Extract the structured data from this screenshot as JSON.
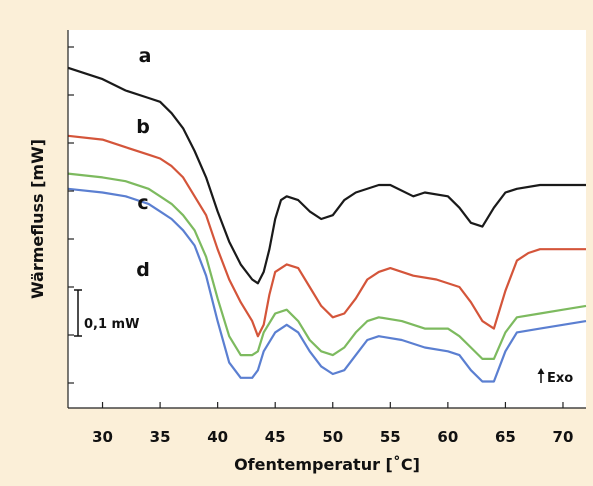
{
  "chart_data": {
    "type": "line",
    "xlabel": "Ofentemperatur [˚C]",
    "ylabel": "Wärmefluss [mW]",
    "xlim": [
      27,
      72
    ],
    "x_ticks": [
      30,
      35,
      40,
      45,
      50,
      55,
      60,
      65,
      70
    ],
    "grid": false,
    "scale_bar_label": "0,1 mW",
    "exo_label": "Exo",
    "series": [
      {
        "name": "a",
        "color": "#1a1a1a",
        "points": [
          [
            27,
            0.9
          ],
          [
            30,
            0.87
          ],
          [
            32,
            0.84
          ],
          [
            34,
            0.82
          ],
          [
            35,
            0.81
          ],
          [
            36,
            0.78
          ],
          [
            37,
            0.74
          ],
          [
            38,
            0.68
          ],
          [
            39,
            0.61
          ],
          [
            40,
            0.52
          ],
          [
            41,
            0.44
          ],
          [
            42,
            0.38
          ],
          [
            43,
            0.34
          ],
          [
            43.5,
            0.33
          ],
          [
            44,
            0.36
          ],
          [
            44.5,
            0.42
          ],
          [
            45,
            0.5
          ],
          [
            45.5,
            0.55
          ],
          [
            46,
            0.56
          ],
          [
            47,
            0.55
          ],
          [
            48,
            0.52
          ],
          [
            49,
            0.5
          ],
          [
            50,
            0.51
          ],
          [
            51,
            0.55
          ],
          [
            52,
            0.57
          ],
          [
            54,
            0.59
          ],
          [
            55,
            0.59
          ],
          [
            57,
            0.56
          ],
          [
            58,
            0.57
          ],
          [
            60,
            0.56
          ],
          [
            61,
            0.53
          ],
          [
            62,
            0.49
          ],
          [
            63,
            0.48
          ],
          [
            64,
            0.53
          ],
          [
            65,
            0.57
          ],
          [
            66,
            0.58
          ],
          [
            68,
            0.59
          ],
          [
            70,
            0.59
          ],
          [
            72,
            0.59
          ]
        ]
      },
      {
        "name": "b",
        "color": "#d4553a",
        "points": [
          [
            27,
            0.72
          ],
          [
            30,
            0.71
          ],
          [
            32,
            0.69
          ],
          [
            34,
            0.67
          ],
          [
            35,
            0.66
          ],
          [
            36,
            0.64
          ],
          [
            37,
            0.61
          ],
          [
            38,
            0.56
          ],
          [
            39,
            0.51
          ],
          [
            40,
            0.42
          ],
          [
            41,
            0.34
          ],
          [
            42,
            0.28
          ],
          [
            43,
            0.23
          ],
          [
            43.5,
            0.19
          ],
          [
            44,
            0.22
          ],
          [
            44.5,
            0.3
          ],
          [
            45,
            0.36
          ],
          [
            46,
            0.38
          ],
          [
            47,
            0.37
          ],
          [
            48,
            0.32
          ],
          [
            49,
            0.27
          ],
          [
            50,
            0.24
          ],
          [
            51,
            0.25
          ],
          [
            52,
            0.29
          ],
          [
            53,
            0.34
          ],
          [
            54,
            0.36
          ],
          [
            55,
            0.37
          ],
          [
            57,
            0.35
          ],
          [
            59,
            0.34
          ],
          [
            61,
            0.32
          ],
          [
            62,
            0.28
          ],
          [
            63,
            0.23
          ],
          [
            64,
            0.21
          ],
          [
            65,
            0.31
          ],
          [
            66,
            0.39
          ],
          [
            67,
            0.41
          ],
          [
            68,
            0.42
          ],
          [
            72,
            0.42
          ]
        ]
      },
      {
        "name": "c",
        "color": "#7dba5f",
        "points": [
          [
            27,
            0.62
          ],
          [
            30,
            0.61
          ],
          [
            32,
            0.6
          ],
          [
            34,
            0.58
          ],
          [
            35,
            0.56
          ],
          [
            36,
            0.54
          ],
          [
            37,
            0.51
          ],
          [
            38,
            0.47
          ],
          [
            39,
            0.4
          ],
          [
            40,
            0.29
          ],
          [
            41,
            0.19
          ],
          [
            42,
            0.14
          ],
          [
            43,
            0.14
          ],
          [
            43.5,
            0.15
          ],
          [
            44,
            0.2
          ],
          [
            45,
            0.25
          ],
          [
            46,
            0.26
          ],
          [
            47,
            0.23
          ],
          [
            48,
            0.18
          ],
          [
            49,
            0.15
          ],
          [
            50,
            0.14
          ],
          [
            51,
            0.16
          ],
          [
            52,
            0.2
          ],
          [
            53,
            0.23
          ],
          [
            54,
            0.24
          ],
          [
            56,
            0.23
          ],
          [
            58,
            0.21
          ],
          [
            60,
            0.21
          ],
          [
            61,
            0.19
          ],
          [
            62,
            0.16
          ],
          [
            63,
            0.13
          ],
          [
            64,
            0.13
          ],
          [
            65,
            0.2
          ],
          [
            66,
            0.24
          ],
          [
            68,
            0.25
          ],
          [
            70,
            0.26
          ],
          [
            72,
            0.27
          ]
        ]
      },
      {
        "name": "d",
        "color": "#5b7fd1",
        "points": [
          [
            27,
            0.58
          ],
          [
            30,
            0.57
          ],
          [
            32,
            0.56
          ],
          [
            34,
            0.54
          ],
          [
            35,
            0.52
          ],
          [
            36,
            0.5
          ],
          [
            37,
            0.47
          ],
          [
            38,
            0.43
          ],
          [
            39,
            0.35
          ],
          [
            40,
            0.23
          ],
          [
            41,
            0.12
          ],
          [
            42,
            0.08
          ],
          [
            43,
            0.08
          ],
          [
            43.5,
            0.1
          ],
          [
            44,
            0.15
          ],
          [
            45,
            0.2
          ],
          [
            46,
            0.22
          ],
          [
            47,
            0.2
          ],
          [
            48,
            0.15
          ],
          [
            49,
            0.11
          ],
          [
            50,
            0.09
          ],
          [
            51,
            0.1
          ],
          [
            52,
            0.14
          ],
          [
            53,
            0.18
          ],
          [
            54,
            0.19
          ],
          [
            56,
            0.18
          ],
          [
            58,
            0.16
          ],
          [
            60,
            0.15
          ],
          [
            61,
            0.14
          ],
          [
            62,
            0.1
          ],
          [
            63,
            0.07
          ],
          [
            64,
            0.07
          ],
          [
            65,
            0.15
          ],
          [
            66,
            0.2
          ],
          [
            68,
            0.21
          ],
          [
            70,
            0.22
          ],
          [
            72,
            0.23
          ]
        ]
      }
    ]
  }
}
